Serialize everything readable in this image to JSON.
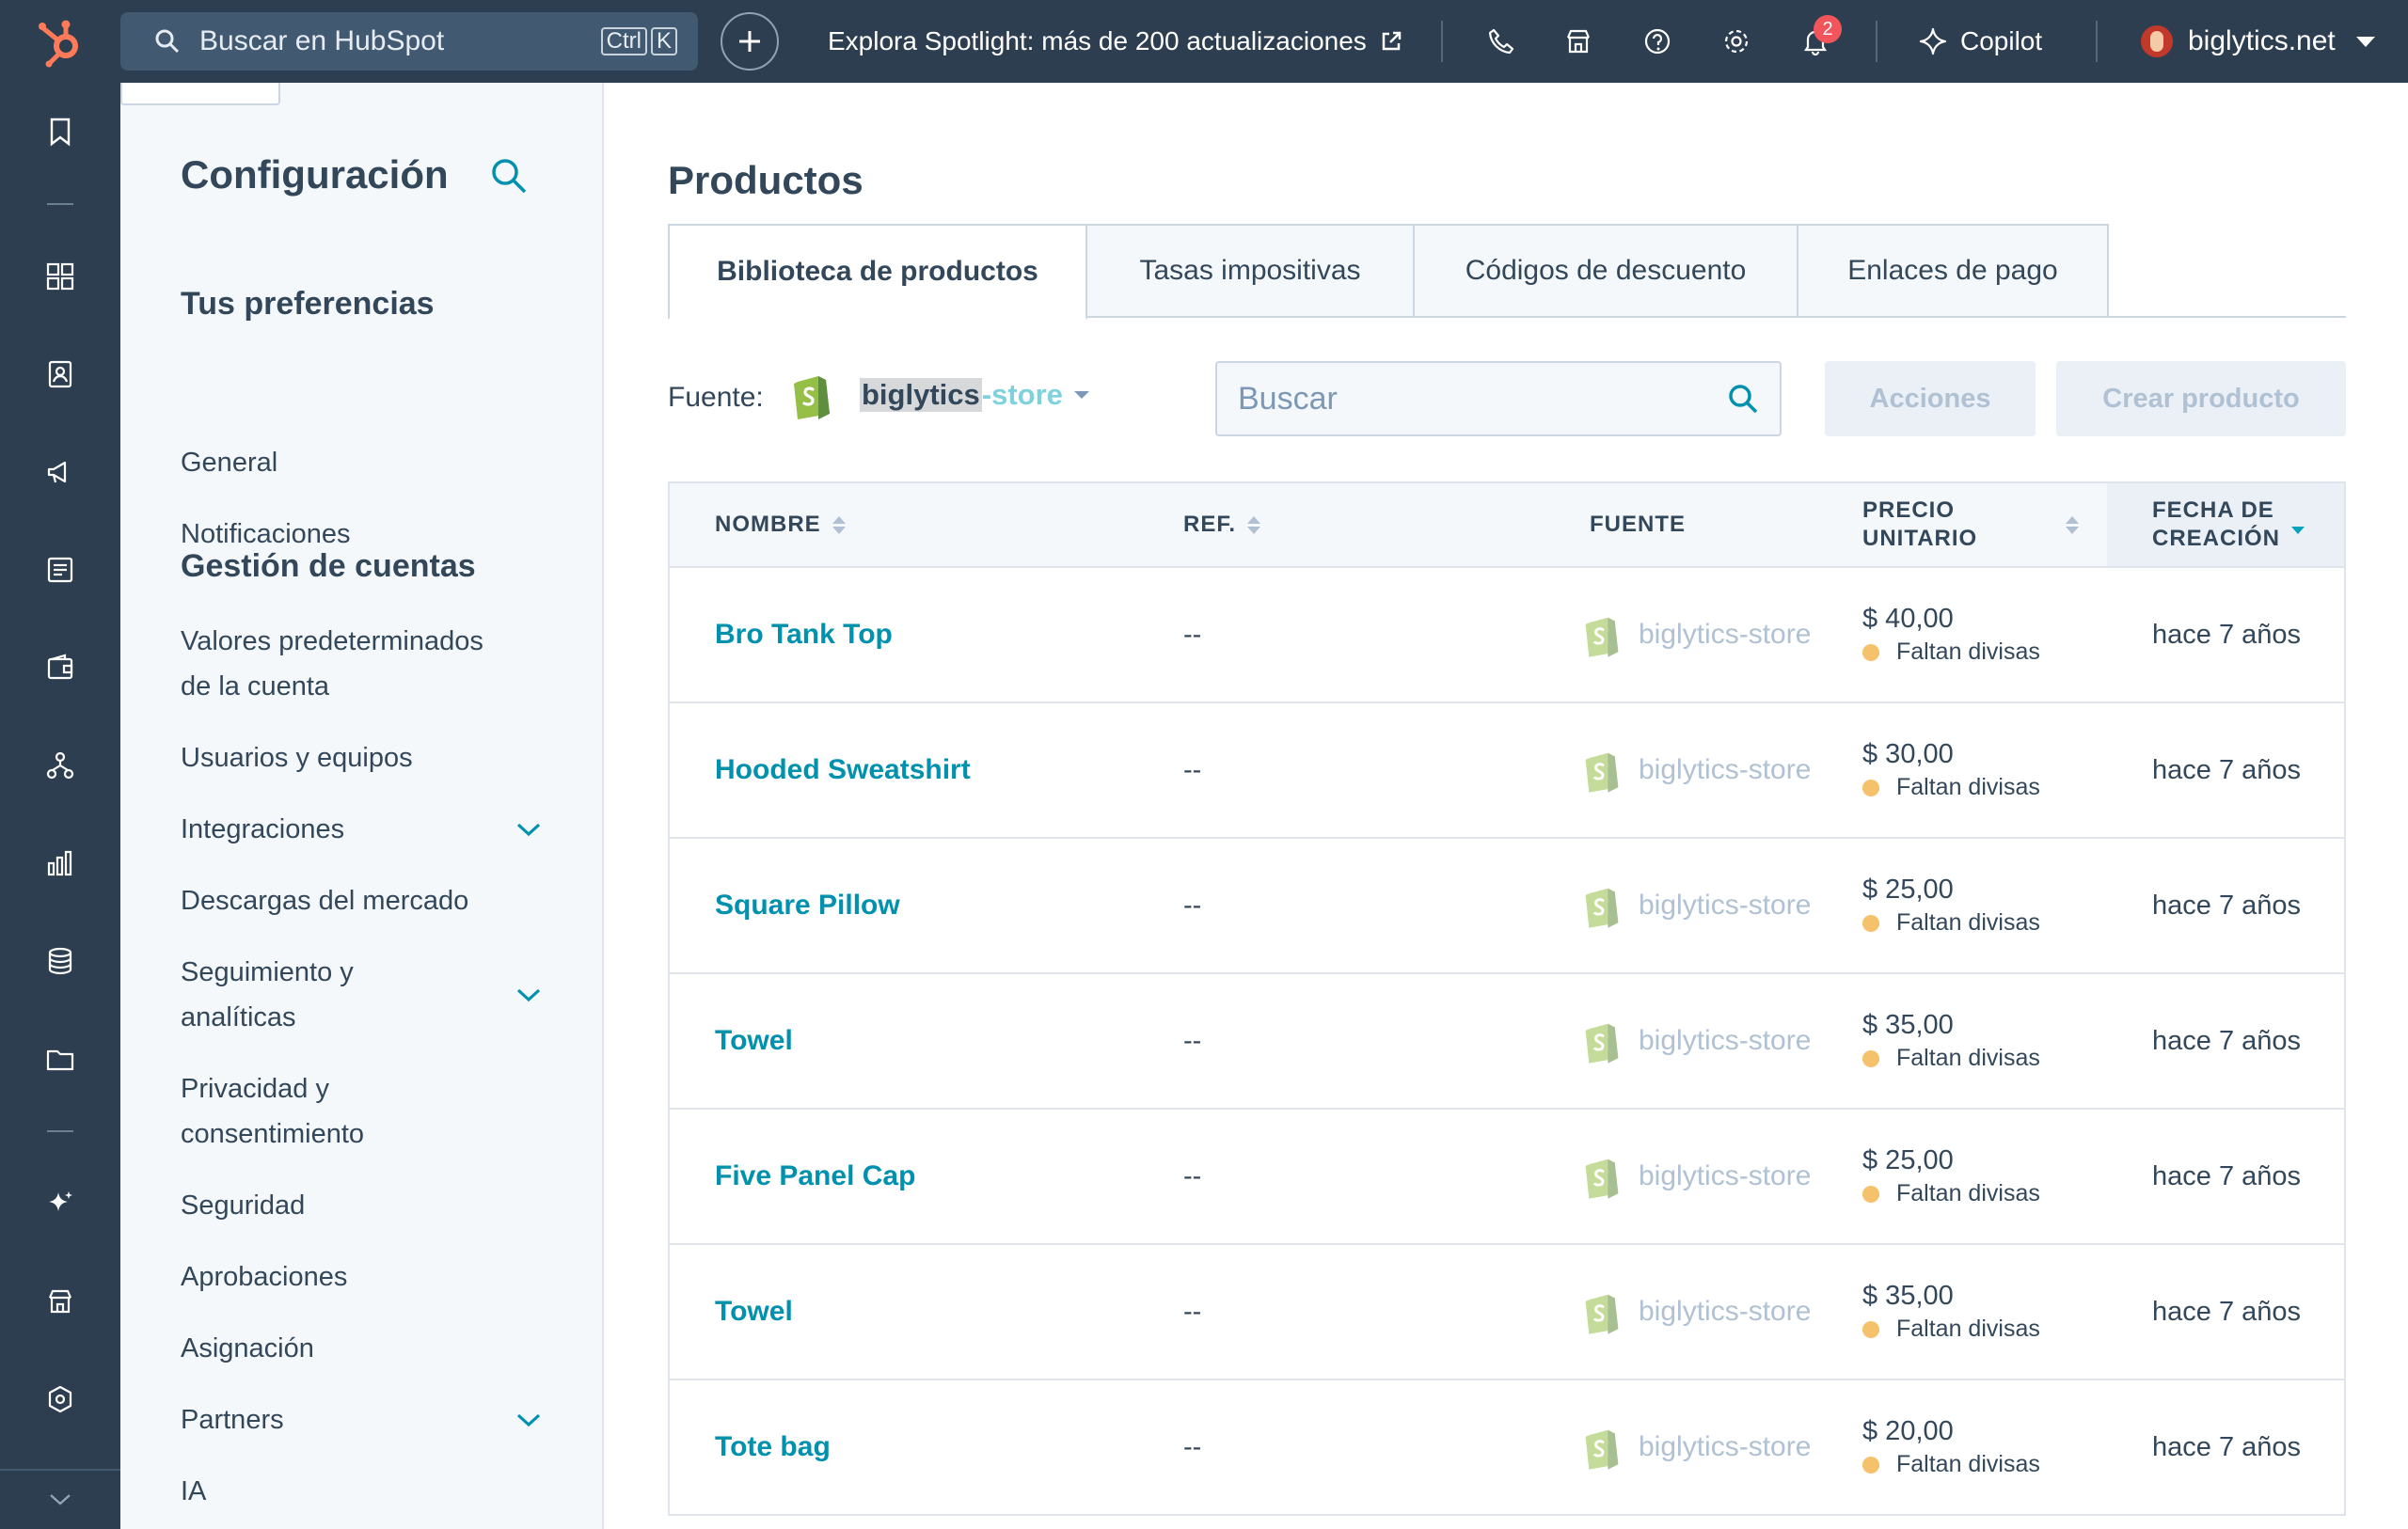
{
  "topbar": {
    "search_label": "Buscar en HubSpot",
    "shortcut_ctrl": "Ctrl",
    "shortcut_key": "K",
    "spotlight": "Explora Spotlight: más de 200 actualizaciones",
    "notification_count": "2",
    "copilot": "Copilot",
    "account": "biglytics.net"
  },
  "sidebar": {
    "title": "Configuración",
    "section1": "Tus preferencias",
    "section2": "Gestión de cuentas",
    "items": {
      "general": "General",
      "notifications": "Notificaciones",
      "account_defaults_1": "Valores predeterminados",
      "account_defaults_2": "de la cuenta",
      "users": "Usuarios y equipos",
      "integrations": "Integraciones",
      "marketplace": "Descargas del mercado",
      "tracking_1": "Seguimiento y",
      "tracking_2": "analíticas",
      "privacy_1": "Privacidad y",
      "privacy_2": "consentimiento",
      "security": "Seguridad",
      "approvals": "Aprobaciones",
      "assignment": "Asignación",
      "partners": "Partners",
      "ai": "IA"
    }
  },
  "main": {
    "title": "Productos",
    "tabs": [
      "Biblioteca de productos",
      "Tasas impositivas",
      "Códigos de descuento",
      "Enlaces de pago"
    ],
    "source_label": "Fuente:",
    "store_highlight": "biglytics",
    "store_rest": "-store",
    "search_placeholder": "Buscar",
    "actions_button": "Acciones",
    "create_button": "Crear producto"
  },
  "table": {
    "columns": {
      "name": "NOMBRE",
      "ref": "REF.",
      "source": "FUENTE",
      "price_1": "PRECIO",
      "price_2": "UNITARIO",
      "date_1": "FECHA DE",
      "date_2": "CREACIÓN"
    },
    "rows": [
      {
        "name": "Bro Tank Top",
        "ref": "--",
        "source": "biglytics-store",
        "price": "$ 40,00",
        "warning": "Faltan divisas",
        "date": "hace 7 años"
      },
      {
        "name": "Hooded Sweatshirt",
        "ref": "--",
        "source": "biglytics-store",
        "price": "$ 30,00",
        "warning": "Faltan divisas",
        "date": "hace 7 años"
      },
      {
        "name": "Square Pillow",
        "ref": "--",
        "source": "biglytics-store",
        "price": "$ 25,00",
        "warning": "Faltan divisas",
        "date": "hace 7 años"
      },
      {
        "name": "Towel",
        "ref": "--",
        "source": "biglytics-store",
        "price": "$ 35,00",
        "warning": "Faltan divisas",
        "date": "hace 7 años"
      },
      {
        "name": "Five Panel Cap",
        "ref": "--",
        "source": "biglytics-store",
        "price": "$ 25,00",
        "warning": "Faltan divisas",
        "date": "hace 7 años"
      },
      {
        "name": "Towel",
        "ref": "--",
        "source": "biglytics-store",
        "price": "$ 35,00",
        "warning": "Faltan divisas",
        "date": "hace 7 años"
      },
      {
        "name": "Tote bag",
        "ref": "--",
        "source": "biglytics-store",
        "price": "$ 20,00",
        "warning": "Faltan divisas",
        "date": "hace 7 años"
      }
    ]
  },
  "colors": {
    "nav_bg": "#2d3e50",
    "link": "#0091ae",
    "accent": "#ff7a59",
    "warning_dot": "#f5c26b",
    "shopify_green": "#95bf47"
  }
}
